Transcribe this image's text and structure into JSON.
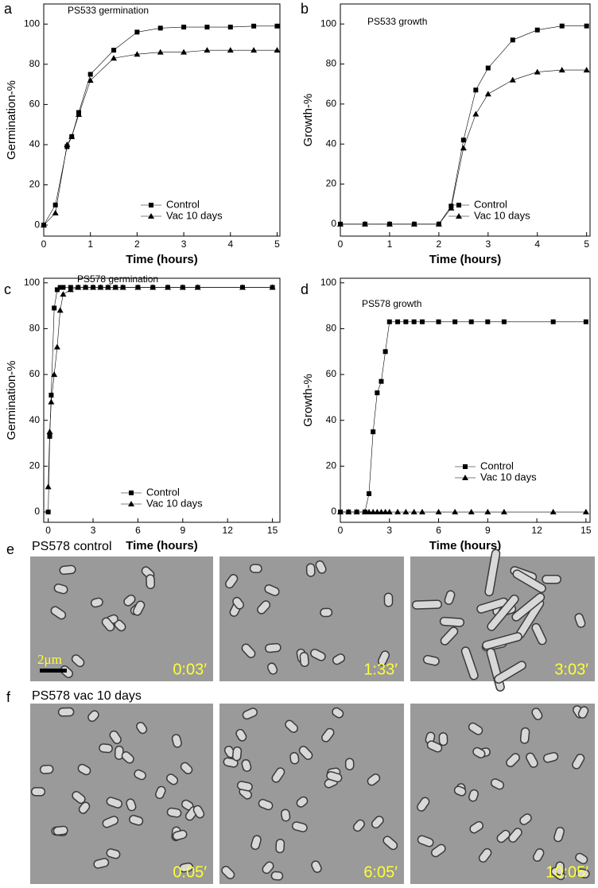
{
  "chart_data": [
    {
      "type": "line",
      "panel": "a",
      "title": "PS533 germination",
      "xlabel": "Time (hours)",
      "ylabel": "Germination-%",
      "x": [
        0,
        0.25,
        0.5,
        0.6,
        0.75,
        1,
        1.5,
        2,
        2.5,
        3,
        3.5,
        4,
        4.5,
        5
      ],
      "series": [
        {
          "name": "Control",
          "color": "#000000",
          "values": [
            0,
            10,
            39,
            44,
            56,
            75,
            87,
            96,
            98,
            98.5,
            98.5,
            98.5,
            99,
            99
          ]
        },
        {
          "name": "Vac 10 days",
          "color": "#000000",
          "values": [
            0,
            6,
            40,
            44,
            55,
            72,
            83,
            85,
            86,
            86,
            87,
            87,
            87,
            87
          ]
        }
      ],
      "xlim": [
        0,
        5.06
      ],
      "ylim": [
        -5.5,
        110
      ],
      "xticks": [
        0,
        1,
        2,
        3,
        4,
        5
      ],
      "yticks": [
        0,
        20,
        40,
        60,
        80,
        100
      ],
      "legend": "lower right"
    },
    {
      "type": "line",
      "panel": "b",
      "title": "PS533 growth",
      "xlabel": "Time (hours)",
      "ylabel": "Growth-%",
      "x": [
        0,
        0.5,
        1,
        1.5,
        2,
        2.25,
        2.5,
        2.75,
        3,
        3.5,
        4,
        4.5,
        5
      ],
      "series": [
        {
          "name": "Control",
          "color": "#000000",
          "values": [
            0,
            0,
            0,
            0,
            0,
            9,
            42,
            67,
            78,
            92,
            97,
            99,
            99
          ]
        },
        {
          "name": "Vac 10 days",
          "color": "#000000",
          "values": [
            0,
            0,
            0,
            0,
            0,
            8,
            38,
            55,
            65,
            72,
            76,
            77,
            77
          ]
        }
      ],
      "xlim": [
        0,
        5.07
      ],
      "ylim": [
        -6,
        110
      ],
      "xticks": [
        0,
        1,
        2,
        3,
        4,
        5
      ],
      "yticks": [
        0,
        20,
        40,
        60,
        80,
        100
      ],
      "legend": "lower right"
    },
    {
      "type": "line",
      "panel": "c",
      "title": "PS578 germination",
      "xlabel": "Time (hours)",
      "ylabel": "Germination-%",
      "x": [
        0,
        0.1,
        0.2,
        0.4,
        0.6,
        0.8,
        1,
        1.5,
        2,
        2.5,
        3,
        3.5,
        4,
        4.5,
        5,
        6,
        7,
        8,
        9,
        10,
        13,
        15
      ],
      "series": [
        {
          "name": "Control",
          "color": "#000000",
          "values": [
            0,
            33,
            51,
            89,
            97,
            98,
            98,
            98,
            98,
            98,
            98,
            98,
            98,
            98,
            98,
            98,
            98,
            98,
            98,
            98,
            98,
            98
          ]
        },
        {
          "name": "Vac 10 days",
          "color": "#000000",
          "values": [
            11,
            35,
            48,
            60,
            72,
            88,
            95,
            97,
            98,
            98,
            98,
            98,
            98,
            98,
            98,
            98,
            98,
            98,
            98,
            98,
            98,
            98
          ]
        }
      ],
      "xlim": [
        -0.3,
        15.5
      ],
      "ylim": [
        -4.5,
        102
      ],
      "xticks": [
        0,
        3,
        6,
        9,
        12,
        15
      ],
      "yticks": [
        0,
        20,
        40,
        60,
        80,
        100
      ],
      "legend": "lower right"
    },
    {
      "type": "line",
      "panel": "d",
      "title": "PS578 growth",
      "xlabel": "Time (hours)",
      "ylabel": "Growth-%",
      "x": [
        0,
        0.5,
        1,
        1.5,
        1.75,
        2,
        2.25,
        2.5,
        2.75,
        3,
        3.5,
        4,
        4.5,
        5,
        6,
        7,
        8,
        9,
        10,
        13,
        15
      ],
      "series": [
        {
          "name": "Control",
          "color": "#000000",
          "values": [
            0,
            0,
            0,
            0,
            8,
            35,
            52,
            57,
            70,
            83,
            83,
            83,
            83,
            83,
            83,
            83,
            83,
            83,
            83,
            83,
            83
          ]
        },
        {
          "name": "Vac 10 days",
          "color": "#000000",
          "values": [
            0,
            0,
            0,
            0,
            0,
            0,
            0,
            0,
            0,
            0,
            0,
            0,
            0,
            0,
            0,
            0,
            0,
            0,
            0,
            0,
            0
          ]
        }
      ],
      "xlim": [
        0,
        15.25
      ],
      "ylim": [
        -4.5,
        102
      ],
      "xticks": [
        0,
        3,
        6,
        9,
        12,
        15
      ],
      "yticks": [
        0,
        20,
        40,
        60,
        80,
        100
      ],
      "legend": "center right"
    }
  ],
  "image_panels": [
    {
      "panel": "e",
      "title": "PS578 control",
      "frames": [
        "0:03′",
        "1:33′",
        "3:03′"
      ],
      "scale_bar": "2μm"
    },
    {
      "panel": "f",
      "title": "PS578 vac 10 days",
      "frames": [
        "0:05′",
        "6:05′",
        "10:05′"
      ]
    }
  ]
}
